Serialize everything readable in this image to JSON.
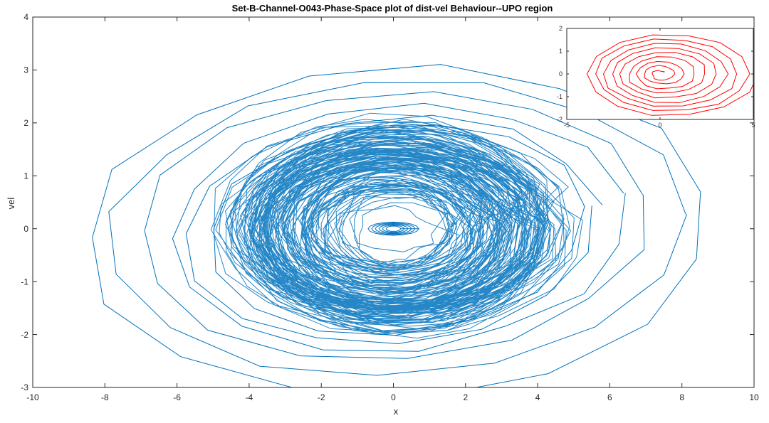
{
  "chart_data": [
    {
      "type": "line",
      "title": "Set-B-Channel-O043-Phase-Space plot of dist-vel Behaviour--UPO region",
      "xlabel": "x",
      "ylabel": "vel",
      "xlim": [
        -10,
        10
      ],
      "ylim": [
        -3,
        4
      ],
      "xticks": [
        -10,
        -8,
        -6,
        -4,
        -2,
        0,
        2,
        4,
        6,
        8,
        10
      ],
      "yticks": [
        -3,
        -2,
        -1,
        0,
        1,
        2,
        3,
        4
      ],
      "grid": false,
      "color": "#0072bd",
      "series": [
        {
          "outer_orbits": [
            {
              "rx": 8.7,
              "ry": 3.1,
              "cx": 0.1,
              "cy": -0.05
            },
            {
              "rx": 8.0,
              "ry": 2.8,
              "cx": 0.2,
              "cy": 0.0
            },
            {
              "rx": 7.1,
              "ry": 2.5,
              "cx": 0.0,
              "cy": 0.05
            },
            {
              "rx": 6.3,
              "ry": 2.3,
              "cx": 0.1,
              "cy": 0.0
            },
            {
              "rx": 5.7,
              "ry": 2.15,
              "cx": 0.0,
              "cy": -0.05
            },
            {
              "rx": 5.2,
              "ry": 2.0,
              "cx": 0.1,
              "cy": 0.0
            }
          ],
          "dense_core": {
            "rx": 4.5,
            "ry": 1.9,
            "cx": 0.0,
            "cy": 0.0
          },
          "fixed_point": {
            "x": 0.0,
            "y": 0.0
          }
        }
      ]
    },
    {
      "type": "line",
      "inset": true,
      "title": "",
      "xlim": [
        -5,
        5
      ],
      "ylim": [
        -2,
        2
      ],
      "xticks": [
        -5,
        0,
        5
      ],
      "yticks": [
        -2,
        -1,
        0,
        1,
        2
      ],
      "color": "#ff0000",
      "series": [
        {
          "spiral": {
            "rx_max": 4.7,
            "ry_max": 1.9,
            "rx_min": 0.2,
            "ry_min": 0.1,
            "cx": 0.0,
            "cy": 0.0
          },
          "fixed_point": {
            "x": 0.0,
            "y": 0.0
          }
        }
      ]
    }
  ]
}
